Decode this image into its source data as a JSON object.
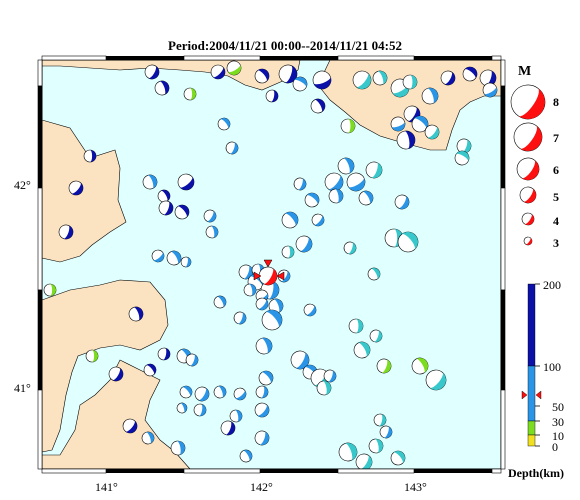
{
  "title": "Period:2004/11/21 00:00--2014/11/21 04:52",
  "map": {
    "lon_labels": [
      "141°",
      "142°",
      "143°"
    ],
    "lat_labels": [
      "42°",
      "41°"
    ],
    "lon_range": [
      140.63,
      143.62
    ],
    "lat_range": [
      40.62,
      42.63
    ]
  },
  "colors": {
    "sea": "#e0ffff",
    "land": "#fbe3c2",
    "shallow": "#7cdc20",
    "mid": "#2a95e6",
    "midlight": "#38c8cc",
    "deep": "#0a10a8",
    "mainshock": "#ff1010"
  },
  "magnitude_legend": {
    "title": "M",
    "levels": [
      "8",
      "7",
      "6",
      "5",
      "4",
      "3"
    ]
  },
  "depth_legend": {
    "title": "Depth(km)",
    "ticks": [
      "200",
      "100",
      "50",
      "30",
      "10",
      "0"
    ],
    "marker_depth": 70
  }
}
